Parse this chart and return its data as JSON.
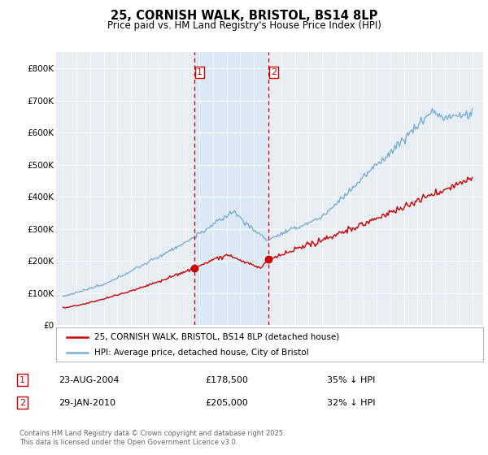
{
  "title": "25, CORNISH WALK, BRISTOL, BS14 8LP",
  "subtitle": "Price paid vs. HM Land Registry's House Price Index (HPI)",
  "legend_label_red": "25, CORNISH WALK, BRISTOL, BS14 8LP (detached house)",
  "legend_label_blue": "HPI: Average price, detached house, City of Bristol",
  "transaction1_date": "23-AUG-2004",
  "transaction1_price": "£178,500",
  "transaction1_hpi": "35% ↓ HPI",
  "transaction2_date": "29-JAN-2010",
  "transaction2_price": "£205,000",
  "transaction2_hpi": "32% ↓ HPI",
  "footnote": "Contains HM Land Registry data © Crown copyright and database right 2025.\nThis data is licensed under the Open Government Licence v3.0.",
  "vline1_x": 2004.65,
  "vline2_x": 2010.08,
  "dot1_x": 2004.65,
  "dot1_y": 178500,
  "dot2_x": 2010.08,
  "dot2_y": 205000,
  "ylim": [
    0,
    850000
  ],
  "xlim_start": 1994.5,
  "xlim_end": 2025.8,
  "red_color": "#cc0000",
  "blue_color": "#7bafd4",
  "blue_fill_color": "#dce9f5",
  "vline_color": "#cc0000",
  "grid_color": "#cccccc",
  "background_color": "#e8eef4",
  "label_box_color": "#cc0000"
}
